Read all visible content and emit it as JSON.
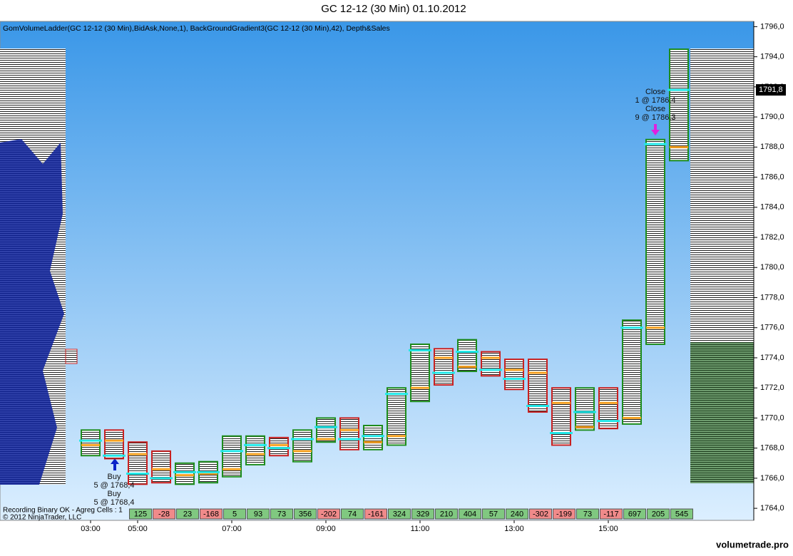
{
  "chart_data": {
    "type": "candlestick",
    "title": "GC 12-12 (30 Min)  01.10.2012",
    "indicator_label": "GomVolumeLadder(GC 12-12 (30 Min),BidAsk,None,1), BackGroundGradient3(GC 12-12 (30 Min),42), Depth&Sales",
    "categories": [
      "03:00",
      null,
      "05:00",
      null,
      null,
      null,
      "07:00",
      null,
      null,
      null,
      "09:00",
      null,
      null,
      null,
      "11:00",
      null,
      null,
      null,
      "13:00",
      null,
      null,
      null,
      "15:00",
      null,
      null,
      null
    ],
    "open": [
      1768.2,
      1768.5,
      1767.6,
      1766.6,
      1766.2,
      1766.3,
      1766.6,
      1767.6,
      1768.2,
      1767.8,
      1768.6,
      1769.2,
      1768.4,
      1768.8,
      1772.0,
      1774.0,
      1773.4,
      1774.0,
      1773.2,
      1773.0,
      1771.0,
      1769.4,
      1771.0,
      1770.0,
      1776.0,
      1788.0
    ],
    "high": [
      1769.2,
      1769.2,
      1768.4,
      1767.8,
      1767.0,
      1767.1,
      1768.8,
      1768.8,
      1768.7,
      1769.2,
      1770.0,
      1770.0,
      1769.5,
      1772.0,
      1774.9,
      1774.6,
      1775.2,
      1774.4,
      1773.9,
      1773.9,
      1772.0,
      1772.0,
      1772.0,
      1776.5,
      1788.5,
      1794.5
    ],
    "low": [
      1767.5,
      1767.3,
      1765.6,
      1765.7,
      1765.6,
      1765.7,
      1766.1,
      1766.9,
      1767.5,
      1767.1,
      1768.4,
      1767.9,
      1767.9,
      1768.2,
      1771.1,
      1772.2,
      1773.1,
      1772.8,
      1771.9,
      1770.4,
      1768.2,
      1769.2,
      1769.3,
      1769.6,
      1774.9,
      1787.1
    ],
    "close": [
      1768.5,
      1767.5,
      1766.3,
      1766.0,
      1766.4,
      1766.4,
      1767.8,
      1768.2,
      1768.0,
      1768.6,
      1769.4,
      1768.6,
      1768.8,
      1771.6,
      1774.5,
      1773.0,
      1774.4,
      1773.2,
      1772.6,
      1770.8,
      1769.0,
      1770.4,
      1769.8,
      1776.0,
      1788.2,
      1791.8
    ],
    "delta_values": [
      null,
      null,
      125,
      -28,
      23,
      -168,
      5,
      93,
      73,
      356,
      -202,
      74,
      -161,
      324,
      329,
      210,
      404,
      57,
      240,
      -302,
      -199,
      73,
      -117,
      697,
      205,
      545
    ],
    "up_color": "#1c8c1c",
    "down_color": "#c82020",
    "ylim": [
      1763.2,
      1796.35
    ],
    "yticks": [
      {
        "value": 1764,
        "label": "1764,0"
      },
      {
        "value": 1766,
        "label": "1766,0"
      },
      {
        "value": 1768,
        "label": "1768,0"
      },
      {
        "value": 1770,
        "label": "1770,0"
      },
      {
        "value": 1772,
        "label": "1772,0"
      },
      {
        "value": 1774,
        "label": "1774,0"
      },
      {
        "value": 1776,
        "label": "1776,0"
      },
      {
        "value": 1778,
        "label": "1778,0"
      },
      {
        "value": 1780,
        "label": "1780,0"
      },
      {
        "value": 1782,
        "label": "1782,0"
      },
      {
        "value": 1784,
        "label": "1784,0"
      },
      {
        "value": 1786,
        "label": "1786,0"
      },
      {
        "value": 1788,
        "label": "1788,0"
      },
      {
        "value": 1790,
        "label": "1790,0"
      },
      {
        "value": 1792,
        "label": "1792,0"
      },
      {
        "value": 1794,
        "label": "1794,0"
      },
      {
        "value": 1796,
        "label": "1796,0"
      }
    ],
    "last_price": {
      "value": 1791.8,
      "label": "1791,8"
    },
    "annotations": [
      {
        "lines": [
          "Buy",
          "5 @ 1768,4",
          "Buy",
          "5 @ 1768,4"
        ]
      },
      {
        "lines": [
          "Close",
          "1 @ 1786,4",
          "Close",
          "9 @ 1786,3"
        ]
      }
    ],
    "status": "Recording Binary OK - Agreg Cells : 1",
    "copyright": "© 2012 NinjaTrader, LLC",
    "watermark": "volumetrade.pro"
  }
}
